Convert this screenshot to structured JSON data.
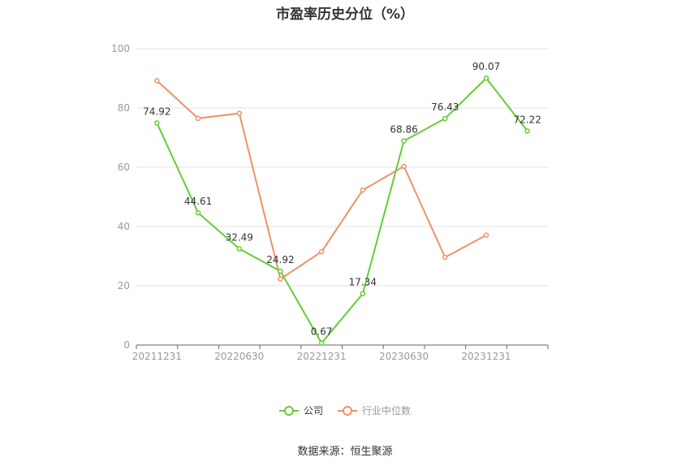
{
  "chart_data": {
    "type": "line",
    "title": "市盈率历史分位（%）",
    "x": [
      "20211231",
      "20220331",
      "20220630",
      "20220930",
      "20221231",
      "20230331",
      "20230630",
      "20230930",
      "20231231",
      "20240331"
    ],
    "x_tick_labels": [
      "20211231",
      "",
      "20220630",
      "",
      "20221231",
      "",
      "20230630",
      "",
      "20231231",
      ""
    ],
    "ylim": [
      0,
      100
    ],
    "y_ticks": [
      "0",
      "20",
      "40",
      "60",
      "80",
      "100"
    ],
    "grid": true,
    "legend_placement": "bottom",
    "series": [
      {
        "name": "公司",
        "color": "#66cc33",
        "values": [
          74.92,
          44.61,
          32.49,
          24.92,
          0.67,
          17.34,
          68.86,
          76.43,
          90.07,
          72.22
        ],
        "labels": [
          "74.92",
          "44.61",
          "32.49",
          "24.92",
          "0.67",
          "17.34",
          "68.86",
          "76.43",
          "90.07",
          "72.22"
        ]
      },
      {
        "name": "行业中位数",
        "color": "#f0916a",
        "values": [
          89.2,
          76.5,
          78.2,
          22.3,
          31.5,
          52.3,
          60.3,
          29.6,
          37.1,
          null
        ],
        "labels": []
      }
    ]
  },
  "footer": {
    "source": "数据来源：恒生聚源"
  }
}
